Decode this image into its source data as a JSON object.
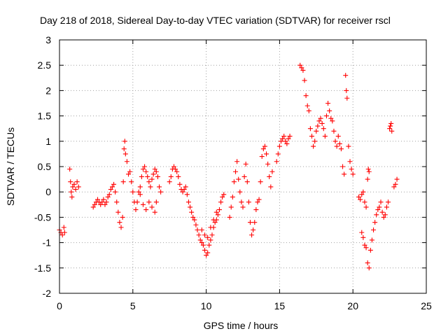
{
  "chart_data": {
    "type": "scatter",
    "title": "Day 218 of 2018, Sidereal Day-to-day VTEC variation (SDTVAR) for receiver rscl",
    "xlabel": "GPS time / hours",
    "ylabel": "SDTVAR / TECUs",
    "xlim": [
      0,
      25
    ],
    "ylim": [
      -2,
      3
    ],
    "xticks": [
      "0",
      "5",
      "10",
      "15",
      "20",
      "25"
    ],
    "yticks": [
      "-2",
      "-1.5",
      "-1",
      "-0.5",
      "0",
      "0.5",
      "1",
      "1.5",
      "2",
      "2.5",
      "3"
    ],
    "grid": true,
    "marker": "+",
    "color": "#ff0000",
    "series": [
      {
        "name": "SDTVAR",
        "points": [
          [
            0.0,
            -0.75
          ],
          [
            0.1,
            -0.8
          ],
          [
            0.2,
            -0.85
          ],
          [
            0.3,
            -0.7
          ],
          [
            0.35,
            -0.8
          ],
          [
            0.7,
            0.45
          ],
          [
            0.75,
            0.2
          ],
          [
            0.8,
            0.0
          ],
          [
            0.85,
            -0.1
          ],
          [
            0.9,
            0.1
          ],
          [
            1.0,
            0.15
          ],
          [
            1.1,
            0.05
          ],
          [
            1.2,
            0.2
          ],
          [
            1.3,
            0.1
          ],
          [
            2.3,
            -0.3
          ],
          [
            2.4,
            -0.25
          ],
          [
            2.5,
            -0.2
          ],
          [
            2.6,
            -0.15
          ],
          [
            2.7,
            -0.2
          ],
          [
            2.8,
            -0.25
          ],
          [
            2.9,
            -0.2
          ],
          [
            3.0,
            -0.15
          ],
          [
            3.1,
            -0.25
          ],
          [
            3.2,
            -0.2
          ],
          [
            3.3,
            -0.1
          ],
          [
            3.4,
            -0.05
          ],
          [
            3.5,
            0.05
          ],
          [
            3.6,
            0.1
          ],
          [
            3.7,
            0.15
          ],
          [
            3.8,
            0.0
          ],
          [
            3.9,
            -0.2
          ],
          [
            4.0,
            -0.4
          ],
          [
            4.1,
            -0.6
          ],
          [
            4.2,
            -0.7
          ],
          [
            4.3,
            -0.5
          ],
          [
            4.35,
            0.2
          ],
          [
            4.4,
            0.85
          ],
          [
            4.45,
            1.0
          ],
          [
            4.5,
            0.75
          ],
          [
            4.6,
            0.6
          ],
          [
            4.7,
            0.35
          ],
          [
            4.8,
            0.4
          ],
          [
            4.9,
            0.2
          ],
          [
            5.0,
            0.0
          ],
          [
            5.1,
            -0.2
          ],
          [
            5.2,
            -0.35
          ],
          [
            5.3,
            -0.2
          ],
          [
            5.4,
            0.0
          ],
          [
            5.5,
            0.1
          ],
          [
            5.6,
            0.3
          ],
          [
            5.7,
            0.45
          ],
          [
            5.8,
            0.5
          ],
          [
            5.9,
            0.4
          ],
          [
            6.0,
            0.3
          ],
          [
            6.1,
            0.2
          ],
          [
            6.2,
            0.1
          ],
          [
            6.3,
            0.25
          ],
          [
            6.4,
            0.35
          ],
          [
            6.5,
            0.45
          ],
          [
            6.6,
            0.4
          ],
          [
            6.7,
            0.3
          ],
          [
            6.8,
            0.1
          ],
          [
            6.9,
            0.0
          ],
          [
            5.5,
            -0.05
          ],
          [
            5.7,
            -0.25
          ],
          [
            5.9,
            -0.35
          ],
          [
            6.1,
            -0.2
          ],
          [
            6.3,
            -0.3
          ],
          [
            6.5,
            -0.4
          ],
          [
            6.6,
            -0.2
          ],
          [
            7.5,
            0.2
          ],
          [
            7.6,
            0.3
          ],
          [
            7.7,
            0.45
          ],
          [
            7.8,
            0.5
          ],
          [
            7.9,
            0.45
          ],
          [
            8.0,
            0.4
          ],
          [
            8.1,
            0.3
          ],
          [
            8.2,
            0.15
          ],
          [
            8.3,
            0.05
          ],
          [
            8.4,
            0.0
          ],
          [
            8.5,
            0.05
          ],
          [
            8.6,
            0.1
          ],
          [
            8.7,
            -0.05
          ],
          [
            8.8,
            -0.2
          ],
          [
            8.9,
            -0.3
          ],
          [
            9.0,
            -0.4
          ],
          [
            9.1,
            -0.5
          ],
          [
            9.2,
            -0.55
          ],
          [
            9.3,
            -0.65
          ],
          [
            9.4,
            -0.75
          ],
          [
            9.5,
            -0.85
          ],
          [
            9.6,
            -0.95
          ],
          [
            9.7,
            -1.0
          ],
          [
            9.8,
            -1.05
          ],
          [
            9.9,
            -1.15
          ],
          [
            10.0,
            -1.25
          ],
          [
            10.1,
            -1.2
          ],
          [
            10.2,
            -1.05
          ],
          [
            10.3,
            -0.95
          ],
          [
            10.4,
            -0.85
          ],
          [
            10.5,
            -0.7
          ],
          [
            10.6,
            -0.6
          ],
          [
            10.7,
            -0.55
          ],
          [
            10.8,
            -0.45
          ],
          [
            10.9,
            -0.35
          ],
          [
            11.0,
            -0.2
          ],
          [
            11.1,
            -0.1
          ],
          [
            11.2,
            -0.05
          ],
          [
            9.7,
            -0.75
          ],
          [
            9.9,
            -0.85
          ],
          [
            10.1,
            -0.9
          ],
          [
            10.3,
            -0.7
          ],
          [
            10.5,
            -0.55
          ],
          [
            10.7,
            -0.4
          ],
          [
            11.6,
            -0.5
          ],
          [
            11.7,
            -0.3
          ],
          [
            11.8,
            -0.1
          ],
          [
            11.9,
            0.2
          ],
          [
            12.0,
            0.4
          ],
          [
            12.1,
            0.6
          ],
          [
            12.2,
            0.25
          ],
          [
            12.3,
            0.0
          ],
          [
            12.4,
            -0.2
          ],
          [
            12.5,
            -0.3
          ],
          [
            12.6,
            0.3
          ],
          [
            12.7,
            0.55
          ],
          [
            12.8,
            0.2
          ],
          [
            12.9,
            -0.2
          ],
          [
            13.0,
            -0.6
          ],
          [
            13.1,
            -0.85
          ],
          [
            13.2,
            -0.75
          ],
          [
            13.3,
            -0.6
          ],
          [
            13.4,
            -0.35
          ],
          [
            13.5,
            -0.2
          ],
          [
            13.6,
            -0.15
          ],
          [
            13.7,
            0.2
          ],
          [
            13.8,
            0.7
          ],
          [
            13.9,
            0.85
          ],
          [
            14.0,
            0.9
          ],
          [
            14.1,
            0.75
          ],
          [
            14.2,
            0.55
          ],
          [
            14.3,
            0.3
          ],
          [
            14.4,
            0.1
          ],
          [
            14.5,
            0.4
          ],
          [
            14.8,
            0.6
          ],
          [
            14.9,
            0.75
          ],
          [
            15.0,
            0.9
          ],
          [
            15.1,
            1.0
          ],
          [
            15.2,
            1.05
          ],
          [
            15.3,
            1.1
          ],
          [
            15.4,
            1.0
          ],
          [
            15.5,
            0.95
          ],
          [
            15.6,
            1.05
          ],
          [
            15.7,
            1.1
          ],
          [
            16.4,
            2.5
          ],
          [
            16.5,
            2.45
          ],
          [
            16.6,
            2.4
          ],
          [
            16.7,
            2.2
          ],
          [
            16.8,
            1.9
          ],
          [
            16.9,
            1.7
          ],
          [
            17.0,
            1.6
          ],
          [
            17.1,
            1.25
          ],
          [
            17.2,
            1.1
          ],
          [
            17.3,
            0.9
          ],
          [
            17.4,
            1.0
          ],
          [
            17.5,
            1.2
          ],
          [
            17.6,
            1.3
          ],
          [
            17.7,
            1.4
          ],
          [
            17.8,
            1.45
          ],
          [
            17.9,
            1.35
          ],
          [
            18.0,
            1.25
          ],
          [
            18.1,
            1.1
          ],
          [
            18.2,
            1.5
          ],
          [
            18.3,
            1.75
          ],
          [
            18.4,
            1.6
          ],
          [
            18.5,
            1.45
          ],
          [
            18.6,
            1.4
          ],
          [
            18.7,
            1.2
          ],
          [
            18.8,
            1.0
          ],
          [
            18.9,
            0.9
          ],
          [
            19.0,
            1.1
          ],
          [
            19.1,
            0.95
          ],
          [
            19.2,
            0.85
          ],
          [
            19.3,
            0.5
          ],
          [
            19.4,
            0.35
          ],
          [
            19.5,
            2.3
          ],
          [
            19.55,
            2.0
          ],
          [
            19.6,
            1.85
          ],
          [
            19.7,
            0.9
          ],
          [
            19.8,
            0.6
          ],
          [
            19.9,
            0.45
          ],
          [
            20.0,
            0.35
          ],
          [
            20.4,
            -0.1
          ],
          [
            20.5,
            -0.15
          ],
          [
            20.6,
            -0.05
          ],
          [
            20.7,
            0.0
          ],
          [
            20.8,
            -0.2
          ],
          [
            20.9,
            -0.3
          ],
          [
            21.0,
            0.25
          ],
          [
            21.05,
            0.45
          ],
          [
            21.1,
            0.4
          ],
          [
            20.6,
            -0.8
          ],
          [
            20.7,
            -0.9
          ],
          [
            20.8,
            -1.05
          ],
          [
            20.9,
            -1.1
          ],
          [
            21.0,
            -1.4
          ],
          [
            21.1,
            -1.5
          ],
          [
            21.2,
            -1.15
          ],
          [
            21.3,
            -0.95
          ],
          [
            21.4,
            -0.75
          ],
          [
            21.5,
            -0.6
          ],
          [
            21.6,
            -0.45
          ],
          [
            21.7,
            -0.35
          ],
          [
            21.8,
            -0.3
          ],
          [
            21.9,
            -0.2
          ],
          [
            22.0,
            -0.4
          ],
          [
            22.1,
            -0.5
          ],
          [
            22.2,
            -0.45
          ],
          [
            22.3,
            -0.3
          ],
          [
            22.4,
            -0.2
          ],
          [
            22.5,
            1.25
          ],
          [
            22.55,
            1.3
          ],
          [
            22.6,
            1.35
          ],
          [
            22.65,
            1.2
          ],
          [
            22.8,
            0.1
          ],
          [
            22.9,
            0.15
          ],
          [
            23.0,
            0.25
          ]
        ]
      }
    ]
  }
}
